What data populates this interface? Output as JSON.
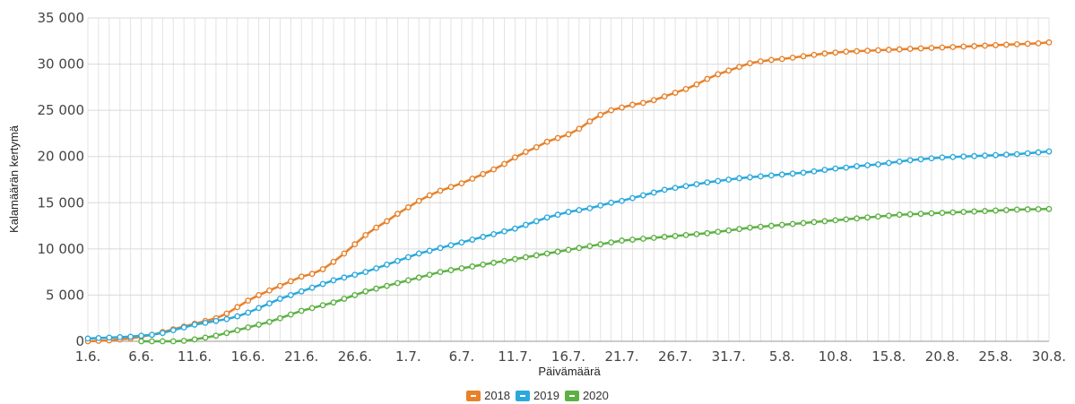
{
  "chart_data": {
    "type": "line",
    "title": "",
    "xlabel": "Päivämäärä",
    "ylabel": "Kalamäärän kertymä",
    "ylim": [
      0,
      35000
    ],
    "yticks": [
      0,
      5000,
      10000,
      15000,
      20000,
      25000,
      30000,
      35000
    ],
    "ytick_labels": [
      "0",
      "5 000",
      "10 000",
      "15 000",
      "20 000",
      "25 000",
      "30 000",
      "35 000"
    ],
    "x_dates": [
      "1.6.",
      "2.6.",
      "3.6.",
      "4.6.",
      "5.6.",
      "6.6.",
      "7.6.",
      "8.6.",
      "9.6.",
      "10.6.",
      "11.6.",
      "12.6.",
      "13.6.",
      "14.6.",
      "15.6.",
      "16.6.",
      "17.6.",
      "18.6.",
      "19.6.",
      "20.6.",
      "21.6.",
      "22.6.",
      "23.6.",
      "24.6.",
      "25.6.",
      "26.6.",
      "27.6.",
      "28.6.",
      "29.6.",
      "30.6.",
      "1.7.",
      "2.7.",
      "3.7.",
      "4.7.",
      "5.7.",
      "6.7.",
      "7.7.",
      "8.7.",
      "9.7.",
      "10.7.",
      "11.7.",
      "12.7.",
      "13.7.",
      "14.7.",
      "15.7.",
      "16.7.",
      "17.7.",
      "18.7.",
      "19.7.",
      "20.7.",
      "21.7.",
      "22.7.",
      "23.7.",
      "24.7.",
      "25.7.",
      "26.7.",
      "27.7.",
      "28.7.",
      "29.7.",
      "30.7.",
      "31.7.",
      "1.8.",
      "2.8.",
      "3.8.",
      "4.8.",
      "5.8.",
      "6.8.",
      "7.8.",
      "8.8.",
      "9.8.",
      "10.8.",
      "11.8.",
      "12.8.",
      "13.8.",
      "14.8.",
      "15.8.",
      "16.8.",
      "17.8.",
      "18.8.",
      "19.8.",
      "20.8.",
      "21.8.",
      "22.8.",
      "23.8.",
      "24.8.",
      "25.8.",
      "26.8.",
      "27.8.",
      "28.8.",
      "29.8.",
      "30.8."
    ],
    "xtick_labels": [
      "1.6.",
      "6.6.",
      "11.6.",
      "16.6.",
      "21.6.",
      "26.6.",
      "1.7.",
      "6.7.",
      "11.7.",
      "16.7.",
      "21.7.",
      "26.7.",
      "31.7.",
      "5.8.",
      "10.8.",
      "15.8.",
      "20.8.",
      "25.8.",
      "30.8."
    ],
    "grid": true,
    "legend_position": "bottom-center",
    "series": [
      {
        "name": "2018",
        "color": "#e8812a",
        "values": [
          0,
          50,
          100,
          200,
          300,
          500,
          700,
          1000,
          1300,
          1600,
          1900,
          2200,
          2500,
          3000,
          3700,
          4400,
          5000,
          5500,
          6000,
          6500,
          7000,
          7300,
          7800,
          8600,
          9500,
          10500,
          11500,
          12300,
          13000,
          13800,
          14500,
          15200,
          15800,
          16300,
          16700,
          17100,
          17600,
          18100,
          18600,
          19200,
          19900,
          20500,
          21000,
          21600,
          22000,
          22400,
          23000,
          23800,
          24500,
          25000,
          25300,
          25600,
          25800,
          26100,
          26500,
          26900,
          27300,
          27800,
          28400,
          28900,
          29300,
          29700,
          30100,
          30300,
          30450,
          30550,
          30700,
          30850,
          31000,
          31150,
          31250,
          31350,
          31400,
          31450,
          31500,
          31550,
          31600,
          31650,
          31700,
          31750,
          31800,
          31850,
          31900,
          31950,
          32000,
          32050,
          32100,
          32150,
          32200,
          32250,
          32350
        ]
      },
      {
        "name": "2019",
        "color": "#2ba9dc",
        "values": [
          300,
          350,
          400,
          450,
          500,
          600,
          700,
          900,
          1200,
          1500,
          1800,
          2000,
          2200,
          2400,
          2700,
          3100,
          3600,
          4100,
          4600,
          5000,
          5400,
          5800,
          6200,
          6600,
          6900,
          7200,
          7500,
          7900,
          8300,
          8700,
          9100,
          9500,
          9800,
          10100,
          10400,
          10700,
          11000,
          11300,
          11600,
          11900,
          12200,
          12600,
          13000,
          13400,
          13700,
          14000,
          14200,
          14400,
          14700,
          15000,
          15200,
          15500,
          15800,
          16100,
          16400,
          16600,
          16800,
          17000,
          17200,
          17350,
          17500,
          17650,
          17750,
          17850,
          17950,
          18050,
          18150,
          18250,
          18400,
          18550,
          18700,
          18800,
          18950,
          19050,
          19150,
          19300,
          19450,
          19600,
          19700,
          19800,
          19900,
          19950,
          20000,
          20050,
          20100,
          20150,
          20200,
          20250,
          20350,
          20450,
          20550
        ]
      },
      {
        "name": "2020",
        "color": "#5db144",
        "values": [
          null,
          null,
          null,
          null,
          null,
          0,
          0,
          0,
          0,
          50,
          200,
          400,
          600,
          900,
          1200,
          1500,
          1800,
          2100,
          2500,
          2900,
          3300,
          3600,
          3900,
          4200,
          4600,
          5000,
          5400,
          5700,
          6000,
          6300,
          6600,
          6900,
          7200,
          7500,
          7700,
          7900,
          8100,
          8300,
          8500,
          8700,
          8900,
          9100,
          9300,
          9500,
          9700,
          9900,
          10100,
          10300,
          10500,
          10700,
          10900,
          11000,
          11100,
          11200,
          11300,
          11400,
          11500,
          11600,
          11700,
          11850,
          12000,
          12150,
          12300,
          12400,
          12500,
          12600,
          12700,
          12800,
          12900,
          13000,
          13100,
          13200,
          13300,
          13400,
          13500,
          13600,
          13700,
          13750,
          13800,
          13850,
          13900,
          13950,
          14000,
          14050,
          14100,
          14150,
          14200,
          14250,
          14280,
          14300,
          14320
        ]
      }
    ]
  }
}
